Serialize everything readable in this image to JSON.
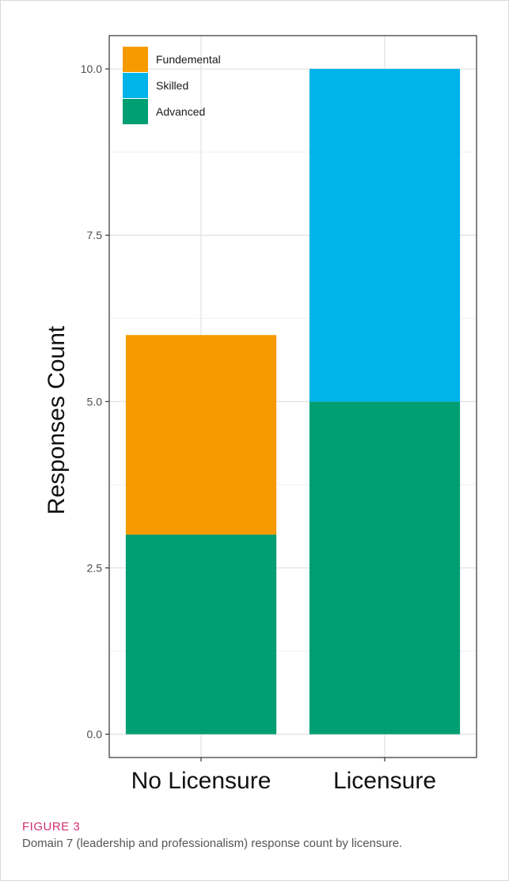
{
  "chart_data": {
    "type": "bar",
    "stacked": true,
    "categories": [
      "No Licensure",
      "Licensure"
    ],
    "series": [
      {
        "name": "Advanced",
        "color": "#009E73",
        "values": [
          3,
          5
        ]
      },
      {
        "name": "Fundemental",
        "color": "#F59A00",
        "values": [
          3,
          0
        ]
      },
      {
        "name": "Skilled",
        "color": "#00B4EA",
        "values": [
          0,
          5
        ]
      }
    ],
    "legend_order": [
      "Fundemental",
      "Skilled",
      "Advanced"
    ],
    "legend_position": "top-left",
    "ylabel": "Responses Count",
    "xlabel": "",
    "ylim": [
      -0.35,
      10.5
    ],
    "yticks": [
      0.0,
      2.5,
      5.0,
      7.5,
      10.0
    ],
    "ytick_labels": [
      "0.0",
      "2.5",
      "5.0",
      "7.5",
      "10.0"
    ],
    "grid": true
  },
  "caption": {
    "label": "FIGURE 3",
    "text": "Domain 7 (leadership and professionalism) response count by licensure."
  }
}
